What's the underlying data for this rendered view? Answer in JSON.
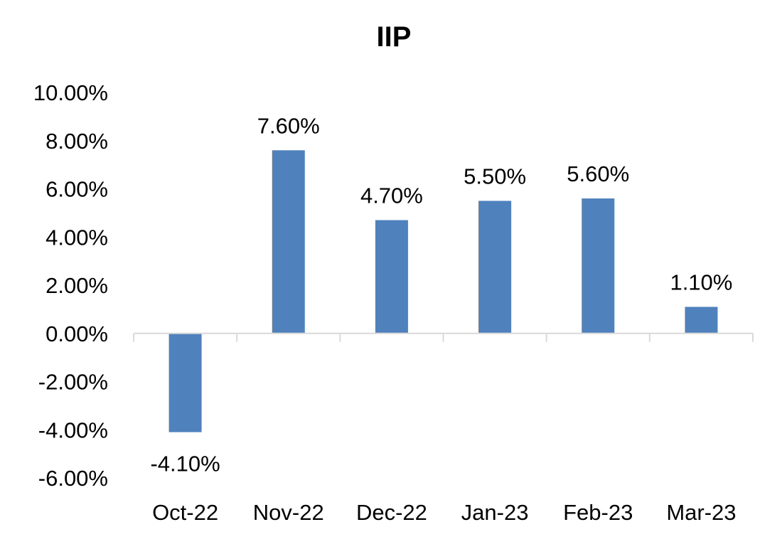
{
  "chart_data": {
    "type": "bar",
    "title": "IIP",
    "xlabel": "",
    "ylabel": "",
    "categories": [
      "Oct-22",
      "Nov-22",
      "Dec-22",
      "Jan-23",
      "Feb-23",
      "Mar-23"
    ],
    "values": [
      -4.1,
      7.6,
      4.7,
      5.5,
      5.6,
      1.1
    ],
    "data_labels": [
      "-4.10%",
      "7.60%",
      "4.70%",
      "5.50%",
      "5.60%",
      "1.10%"
    ],
    "ylim": [
      -6,
      10
    ],
    "yticks": [
      10,
      8,
      6,
      4,
      2,
      0,
      -2,
      -4,
      -6
    ],
    "ytick_labels": [
      "10.00%",
      "8.00%",
      "6.00%",
      "4.00%",
      "2.00%",
      "0.00%",
      "-2.00%",
      "-4.00%",
      "-6.00%"
    ],
    "bar_color": "#4f81bd",
    "axis_color": "#d9d9d9",
    "grid": false,
    "legend": "none"
  }
}
